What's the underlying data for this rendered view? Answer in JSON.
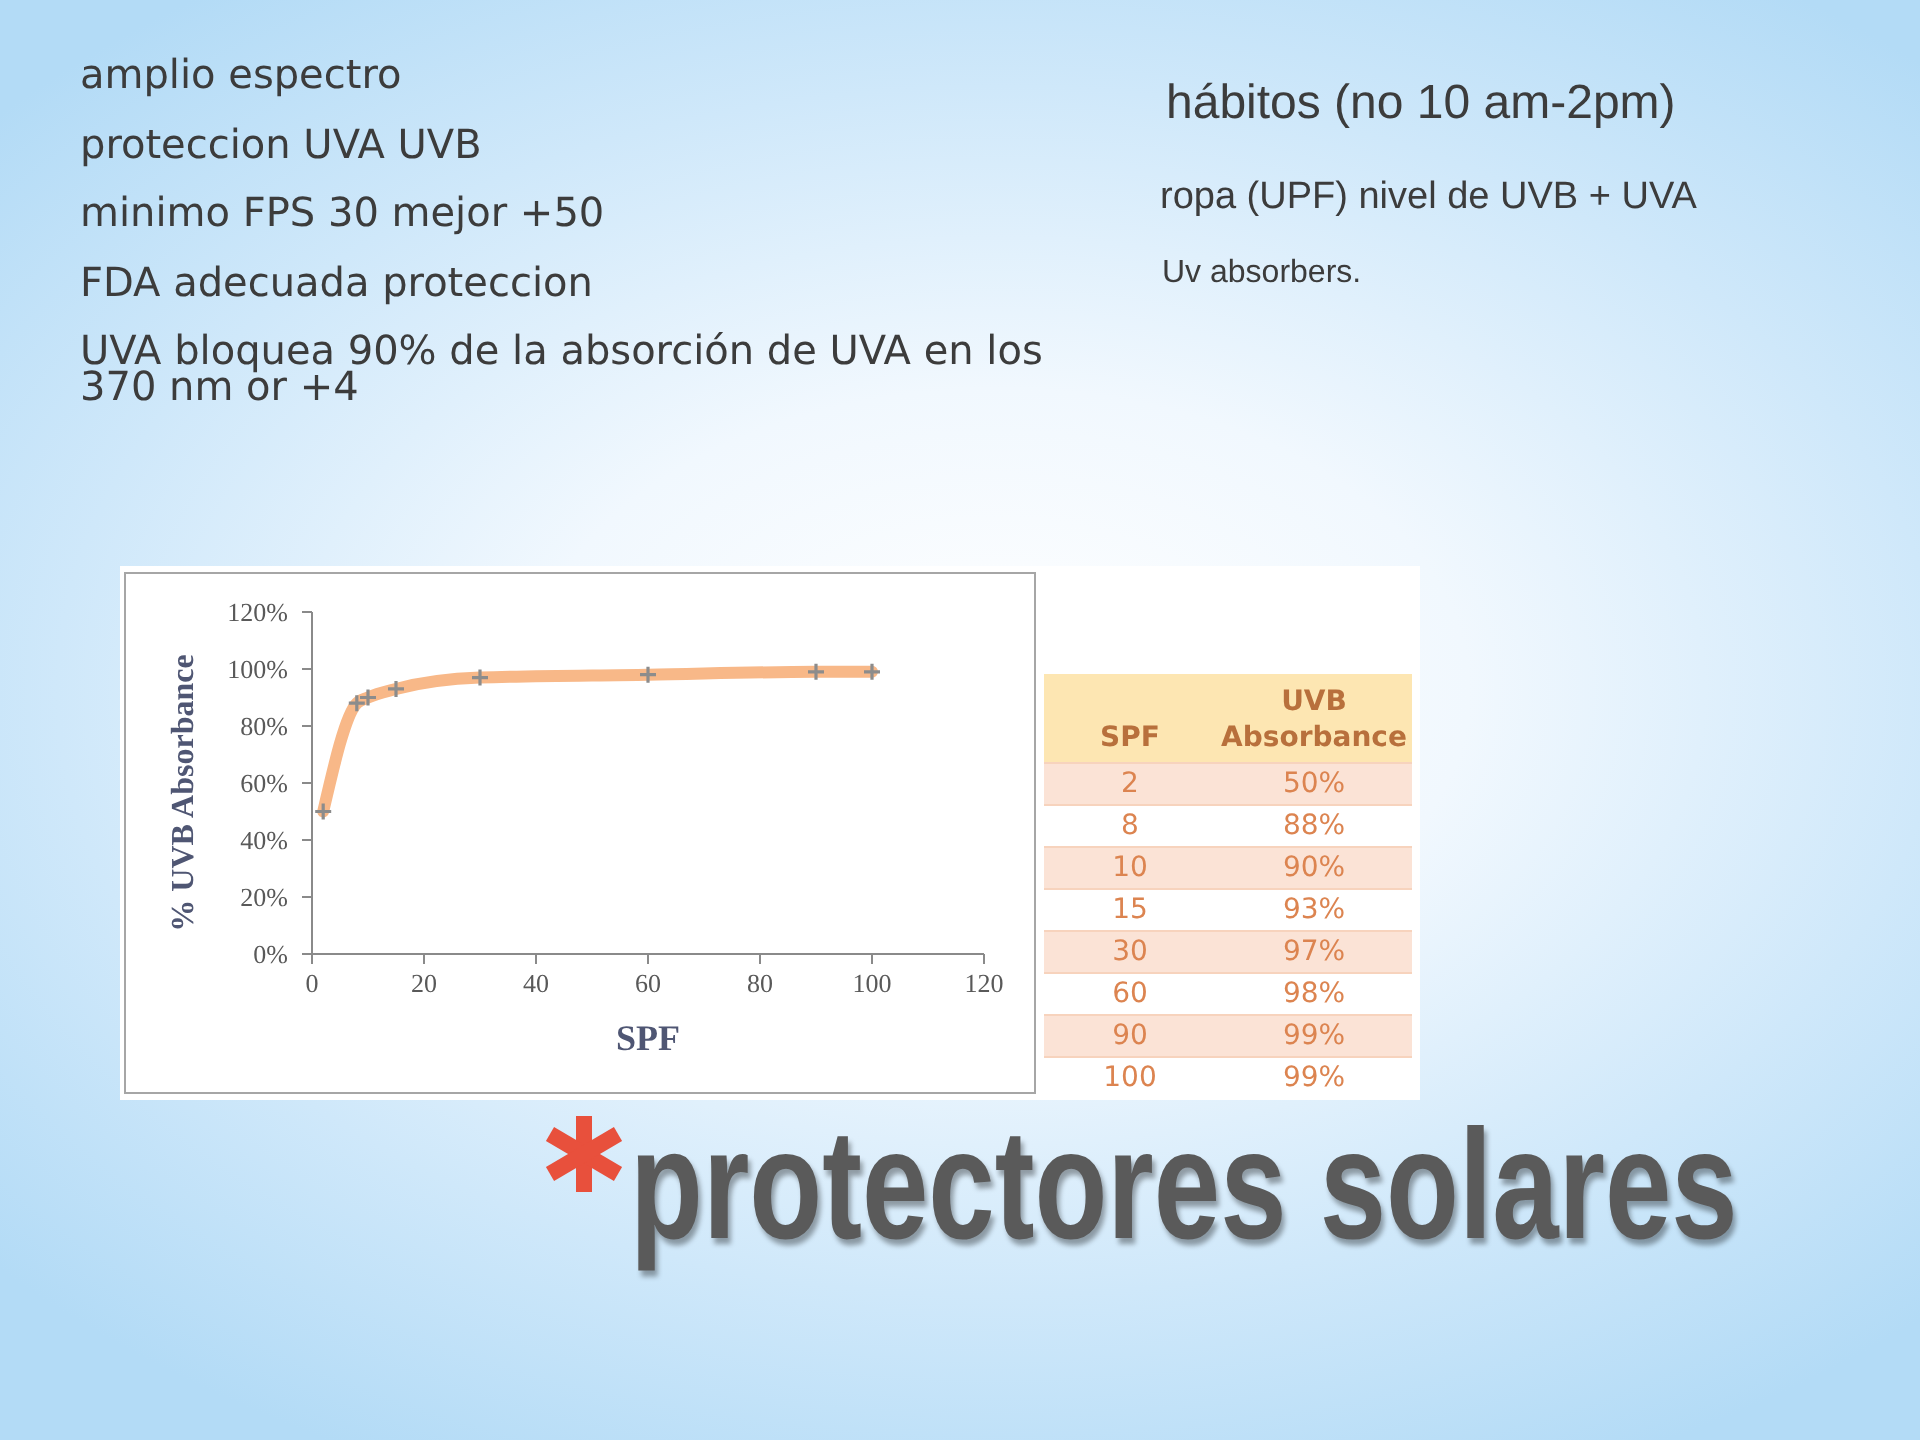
{
  "chart_data": [
    {
      "type": "line",
      "title": "protectores solares",
      "xlabel": "SPF",
      "ylabel": "% UVB Absorbance",
      "annotations": [
        "amplio espectro",
        "proteccion UVA UVB",
        "minimo FPS 30 mejor +50",
        "FDA adecuada proteccion",
        "UVA bloquea 90% de la absorción de UVA en los 370 nm or +4",
        "hábitos (no 10 am-2pm)",
        "ropa (UPF) nivel de UVB + UVA",
        "Uv absorbers."
      ],
      "x": [
        2,
        8,
        10,
        15,
        30,
        60,
        90,
        100
      ],
      "values": [
        50,
        88,
        90,
        93,
        97,
        98,
        99,
        99
      ],
      "color": "#f8b888",
      "xlim": [
        0,
        120
      ],
      "xticks": [
        0,
        20,
        40,
        60,
        80,
        100,
        120
      ],
      "ylim": [
        0,
        120
      ],
      "yticks": [
        {
          "value": 0,
          "label": "0%"
        },
        {
          "value": 20,
          "label": "20%"
        },
        {
          "value": 40,
          "label": "40%"
        },
        {
          "value": 60,
          "label": "60%"
        },
        {
          "value": 80,
          "label": "80%"
        },
        {
          "value": 100,
          "label": "100%"
        },
        {
          "value": 120,
          "label": "120%"
        }
      ],
      "marker": "cross",
      "line_style": "solid"
    },
    {
      "type": "other",
      "xlabel": "SPF",
      "ylabel": "UVB Absorbance",
      "categories": [
        "2",
        "8",
        "10",
        "15",
        "30",
        "60",
        "90",
        "100"
      ],
      "values": [
        50,
        88,
        90,
        93,
        97,
        98,
        99,
        99
      ],
      "value_labels": [
        "50%",
        "88%",
        "90%",
        "93%",
        "97%",
        "98%",
        "99%",
        "99%"
      ]
    }
  ]
}
